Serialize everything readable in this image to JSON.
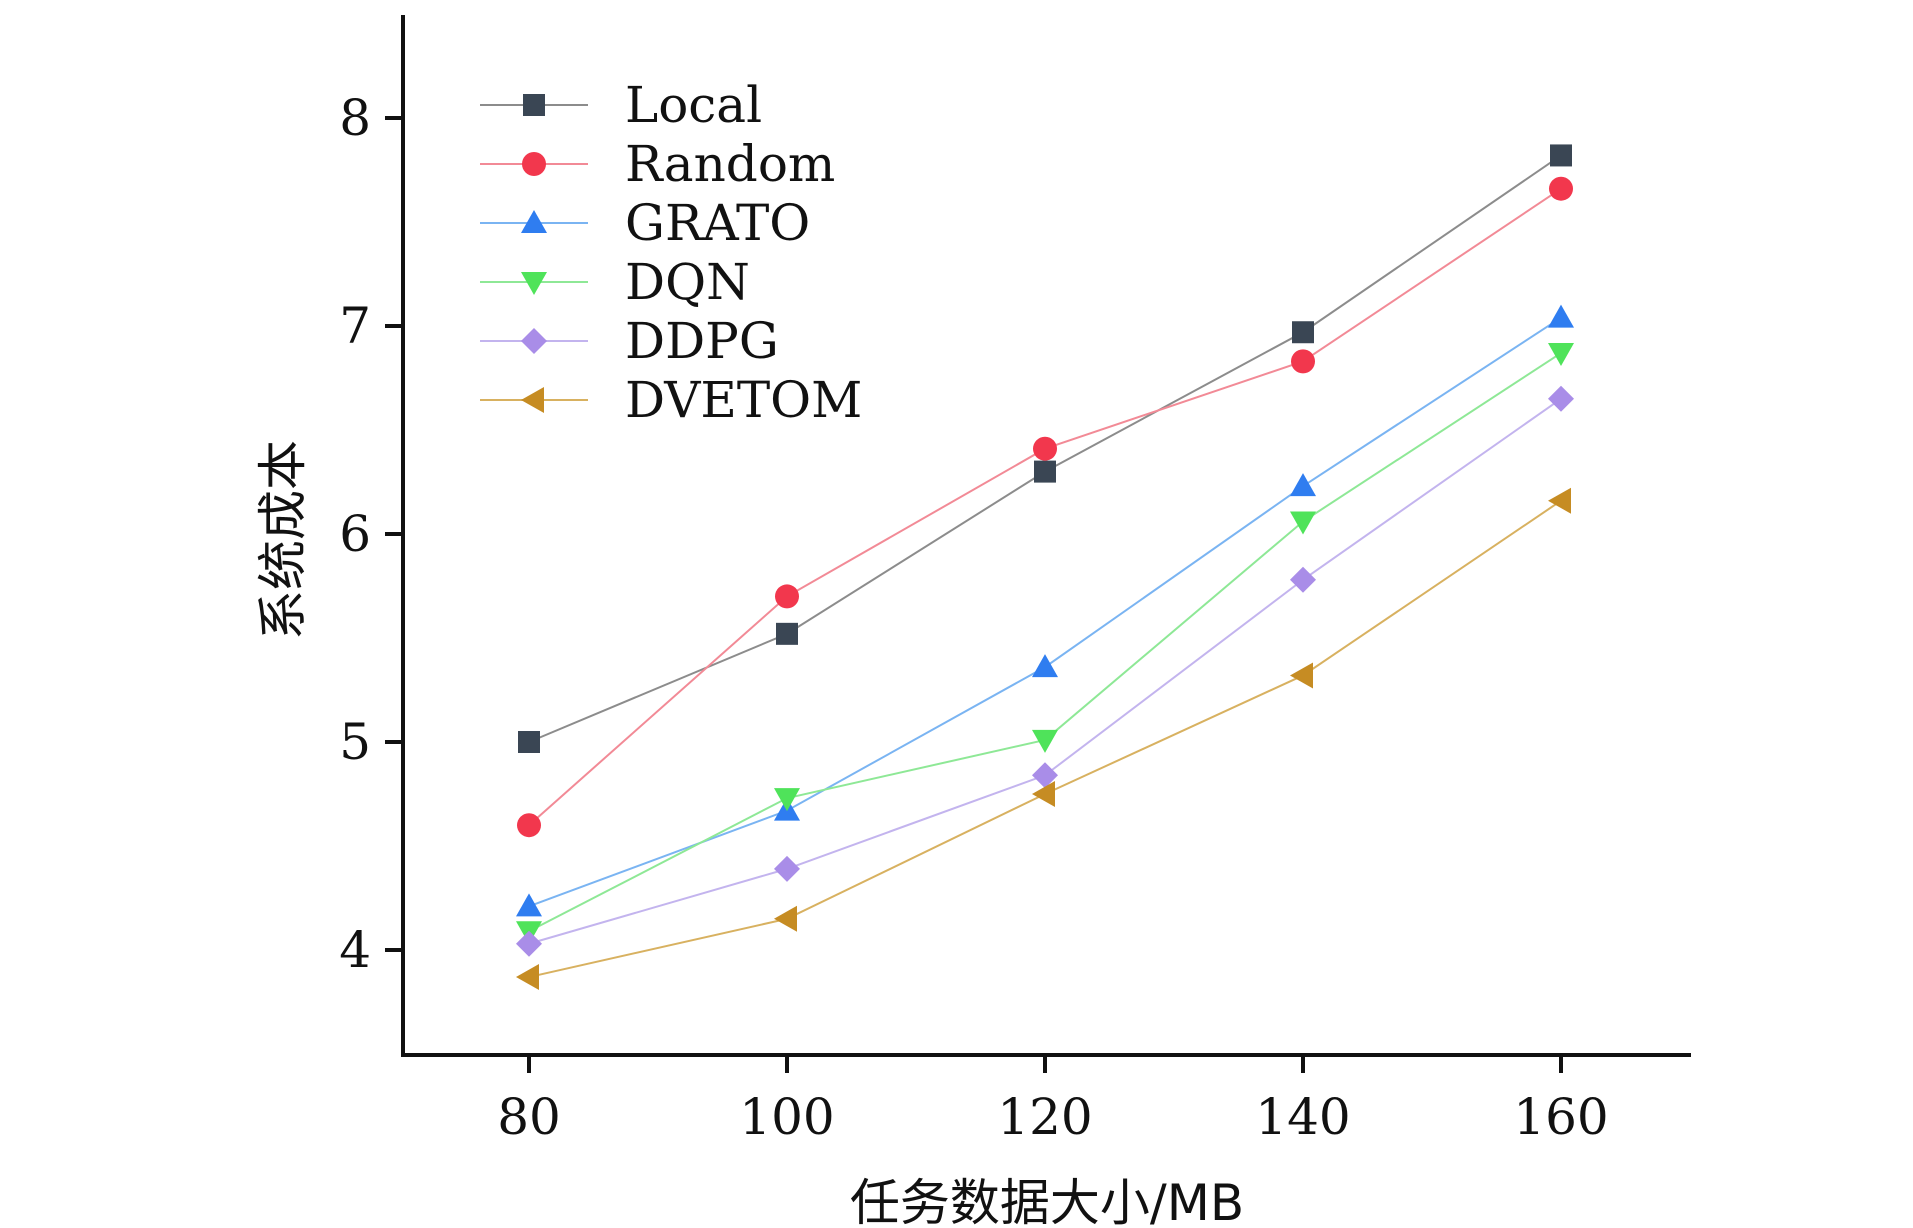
{
  "chart_data": {
    "type": "line",
    "title": "",
    "xlabel": "任务数据大小/MB",
    "ylabel": "系统成本",
    "x": [
      80,
      100,
      120,
      140,
      160
    ],
    "xticks": [
      80,
      100,
      120,
      140,
      160
    ],
    "yticks": [
      4,
      5,
      6,
      7,
      8
    ],
    "xlim": [
      70,
      170
    ],
    "ylim": [
      3.5,
      8.5
    ],
    "grid": false,
    "legend_position": "top-left",
    "series": [
      {
        "name": "Local",
        "color": "#3a4654",
        "line_color": "#8c8c8c",
        "marker": "square",
        "values": [
          5.0,
          5.52,
          6.3,
          6.97,
          7.82
        ]
      },
      {
        "name": "Random",
        "color": "#f2374d",
        "line_color": "#f28a96",
        "marker": "circle",
        "values": [
          4.6,
          5.7,
          6.41,
          6.83,
          7.66
        ]
      },
      {
        "name": "GRATO",
        "color": "#2f7df0",
        "line_color": "#7ab4f2",
        "marker": "triangle-up",
        "values": [
          4.21,
          4.67,
          5.36,
          6.23,
          7.04
        ]
      },
      {
        "name": "DQN",
        "color": "#4fe35a",
        "line_color": "#8ee896",
        "marker": "triangle-down",
        "values": [
          4.09,
          4.73,
          5.01,
          6.06,
          6.87
        ]
      },
      {
        "name": "DDPG",
        "color": "#a98de8",
        "line_color": "#c3b4ee",
        "marker": "diamond",
        "values": [
          4.03,
          4.39,
          4.84,
          5.78,
          6.65
        ]
      },
      {
        "name": "DVETOM",
        "color": "#c68c23",
        "line_color": "#d8b160",
        "marker": "triangle-left",
        "values": [
          3.87,
          4.15,
          4.75,
          5.32,
          6.16
        ]
      }
    ]
  }
}
